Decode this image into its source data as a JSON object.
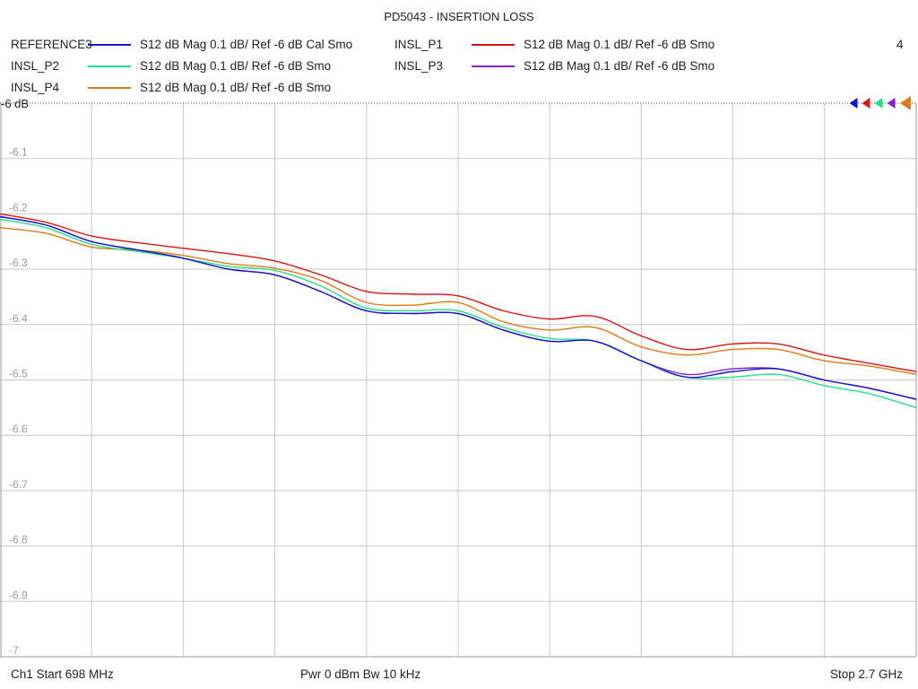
{
  "window": {
    "title": "PD5043 - INSERTION LOSS",
    "channel_count": "4"
  },
  "footer": {
    "left": "Ch1  Start  698 MHz",
    "center": "Pwr  0 dBm  Bw  10 kHz",
    "right": "Stop  2.7 GHz"
  },
  "chart_data": {
    "type": "line",
    "title": "PD5043 - INSERTION LOSS",
    "xlabel": "",
    "ylabel": "",
    "x_unit": "GHz",
    "xlim": [
      0.698,
      2.7
    ],
    "ylim": [
      -7.0,
      -6.0
    ],
    "ref_label": "-6 dB",
    "y_ticks": [
      -6.1,
      -6.2,
      -6.3,
      -6.4,
      -6.5,
      -6.6,
      -6.7,
      -6.8,
      -6.9,
      -7
    ],
    "y_tick_labels": [
      "-6.1",
      "-6.2",
      "-6.3",
      "-6.4",
      "-6.5",
      "-6.6",
      "-6.7",
      "-6.8",
      "-6.9",
      "-7"
    ],
    "grid": true,
    "legend_position": "top",
    "x": [
      0.698,
      0.798,
      0.898,
      0.998,
      1.098,
      1.198,
      1.298,
      1.398,
      1.498,
      1.598,
      1.698,
      1.798,
      1.898,
      1.998,
      2.098,
      2.198,
      2.298,
      2.398,
      2.498,
      2.598,
      2.7
    ],
    "series": [
      {
        "name": "REFERENCE3",
        "desc": "S12  dB Mag  0.1 dB/ Ref -6 dB  Cal Smo",
        "color": "#1515c8",
        "values": [
          -6.205,
          -6.22,
          -6.25,
          -6.265,
          -6.28,
          -6.3,
          -6.31,
          -6.34,
          -6.375,
          -6.38,
          -6.38,
          -6.41,
          -6.43,
          -6.43,
          -6.465,
          -6.495,
          -6.485,
          -6.48,
          -6.5,
          -6.515,
          -6.535
        ]
      },
      {
        "name": "INSL_P1",
        "desc": "S12  dB Mag  0.1 dB/ Ref -6 dB  Smo",
        "color": "#d81414",
        "values": [
          -6.2,
          -6.215,
          -6.24,
          -6.252,
          -6.262,
          -6.272,
          -6.285,
          -6.31,
          -6.34,
          -6.345,
          -6.348,
          -6.375,
          -6.39,
          -6.385,
          -6.42,
          -6.445,
          -6.435,
          -6.435,
          -6.455,
          -6.47,
          -6.485
        ]
      },
      {
        "name": "INSL_P2",
        "desc": "S12  dB Mag  0.1 dB/ Ref -6 dB  Smo",
        "color": "#22e08a",
        "values": [
          -6.21,
          -6.225,
          -6.255,
          -6.268,
          -6.28,
          -6.295,
          -6.302,
          -6.33,
          -6.37,
          -6.375,
          -6.375,
          -6.405,
          -6.425,
          -6.43,
          -6.465,
          -6.495,
          -6.495,
          -6.49,
          -6.51,
          -6.525,
          -6.55
        ]
      },
      {
        "name": "INSL_P3",
        "desc": "S12  dB Mag  0.1 dB/ Ref -6 dB  Smo",
        "color": "#8b1ed8",
        "values": [
          -6.205,
          -6.22,
          -6.25,
          -6.265,
          -6.28,
          -6.3,
          -6.31,
          -6.34,
          -6.375,
          -6.38,
          -6.38,
          -6.41,
          -6.43,
          -6.43,
          -6.465,
          -6.49,
          -6.48,
          -6.48,
          -6.5,
          -6.515,
          -6.535
        ]
      },
      {
        "name": "INSL_P4",
        "desc": "S12  dB Mag  0.1 dB/ Ref -6 dB  Smo",
        "color": "#e07a14",
        "values": [
          -6.225,
          -6.235,
          -6.26,
          -6.265,
          -6.275,
          -6.29,
          -6.298,
          -6.32,
          -6.36,
          -6.365,
          -6.36,
          -6.395,
          -6.41,
          -6.405,
          -6.44,
          -6.455,
          -6.445,
          -6.445,
          -6.465,
          -6.475,
          -6.49
        ]
      }
    ]
  }
}
